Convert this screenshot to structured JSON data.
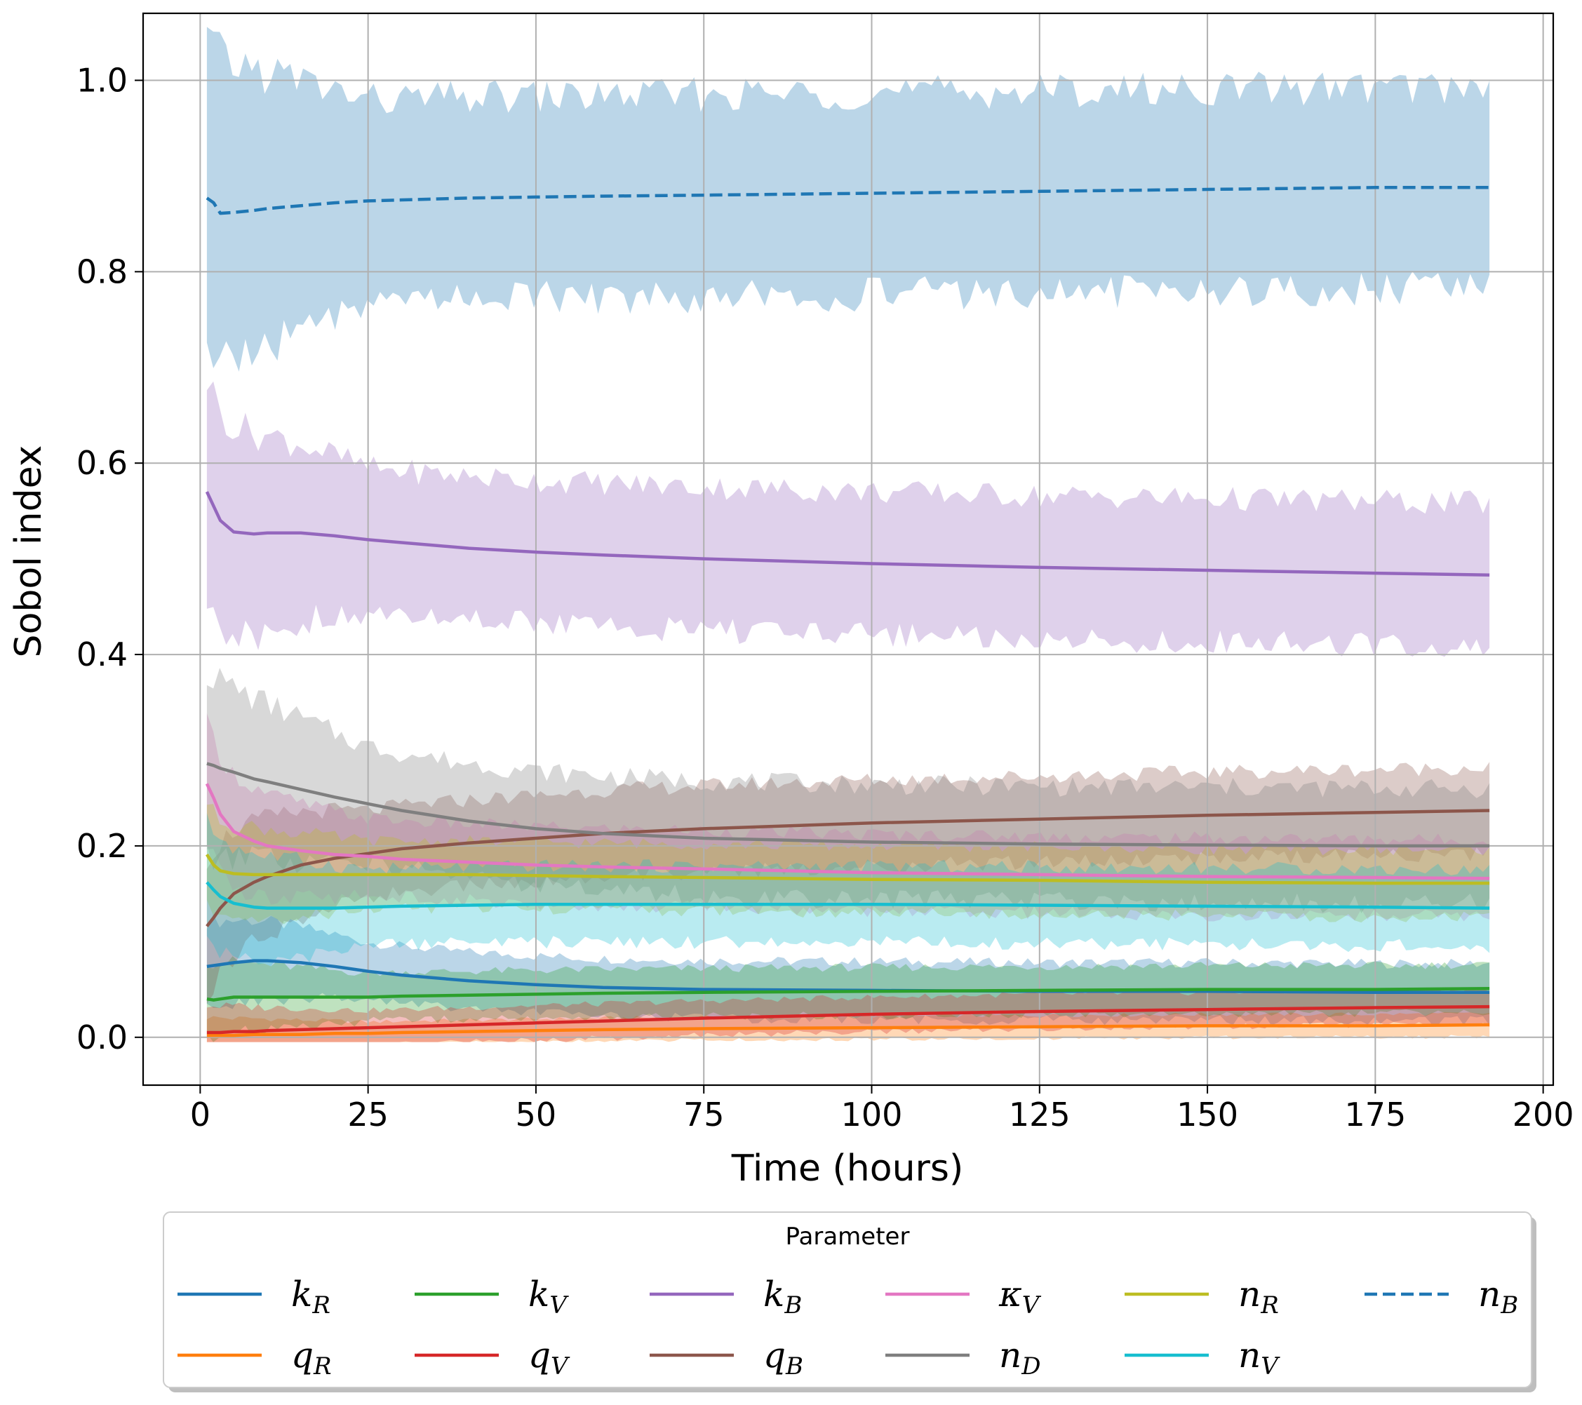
{
  "chart_data": {
    "type": "line",
    "xlabel": "Time (hours)",
    "ylabel": "Sobol index",
    "xlim": [
      -8.5,
      201.5
    ],
    "ylim": [
      -0.05,
      1.07
    ],
    "xticks": [
      0,
      25,
      50,
      75,
      100,
      125,
      150,
      175,
      200
    ],
    "yticks": [
      0.0,
      0.2,
      0.4,
      0.6,
      0.8,
      1.0
    ],
    "ytick_labels": [
      "0.0",
      "0.2",
      "0.4",
      "0.6",
      "0.8",
      "1.0"
    ],
    "grid": true,
    "legend": {
      "title": "Parameter",
      "placement": "below",
      "columns": 6
    },
    "x": [
      1,
      2,
      3,
      5,
      8,
      10,
      15,
      20,
      25,
      30,
      40,
      50,
      60,
      75,
      100,
      125,
      150,
      175,
      192
    ],
    "series": [
      {
        "name": "k",
        "sub": "R",
        "color": "#1f77b4",
        "dash": false,
        "band": 0.03,
        "values": [
          0.074,
          0.075,
          0.076,
          0.078,
          0.08,
          0.08,
          0.078,
          0.074,
          0.069,
          0.065,
          0.059,
          0.055,
          0.052,
          0.05,
          0.049,
          0.048,
          0.048,
          0.047,
          0.047
        ]
      },
      {
        "name": "q",
        "sub": "R",
        "color": "#ff7f0e",
        "dash": false,
        "band": 0.012,
        "values": [
          0.002,
          0.002,
          0.002,
          0.002,
          0.003,
          0.003,
          0.003,
          0.004,
          0.004,
          0.005,
          0.006,
          0.007,
          0.008,
          0.009,
          0.01,
          0.011,
          0.012,
          0.012,
          0.013
        ]
      },
      {
        "name": "k",
        "sub": "V",
        "color": "#2ca02c",
        "dash": false,
        "band": 0.025,
        "values": [
          0.04,
          0.039,
          0.04,
          0.042,
          0.042,
          0.042,
          0.042,
          0.042,
          0.042,
          0.043,
          0.044,
          0.045,
          0.046,
          0.047,
          0.048,
          0.049,
          0.05,
          0.05,
          0.051
        ]
      },
      {
        "name": "q",
        "sub": "V",
        "color": "#d62728",
        "dash": false,
        "band": 0.018,
        "values": [
          0.005,
          0.005,
          0.005,
          0.006,
          0.006,
          0.007,
          0.008,
          0.009,
          0.01,
          0.011,
          0.013,
          0.015,
          0.017,
          0.02,
          0.024,
          0.027,
          0.029,
          0.031,
          0.032
        ]
      },
      {
        "name": "k",
        "sub": "B",
        "color": "#9467bd",
        "dash": false,
        "band": 0.075,
        "values": [
          0.57,
          0.555,
          0.54,
          0.528,
          0.526,
          0.527,
          0.527,
          0.524,
          0.52,
          0.517,
          0.511,
          0.507,
          0.504,
          0.5,
          0.495,
          0.491,
          0.488,
          0.485,
          0.483
        ]
      },
      {
        "name": "q",
        "sub": "B",
        "color": "#8c564b",
        "dash": false,
        "band": 0.045,
        "values": [
          0.116,
          0.125,
          0.135,
          0.15,
          0.162,
          0.168,
          0.18,
          0.187,
          0.192,
          0.197,
          0.203,
          0.208,
          0.213,
          0.218,
          0.224,
          0.228,
          0.232,
          0.235,
          0.237
        ]
      },
      {
        "name": "κ",
        "sub": "V",
        "color": "#e377c2",
        "dash": false,
        "band": 0.04,
        "values": [
          0.265,
          0.25,
          0.233,
          0.215,
          0.205,
          0.2,
          0.195,
          0.191,
          0.189,
          0.186,
          0.183,
          0.18,
          0.178,
          0.176,
          0.172,
          0.17,
          0.168,
          0.167,
          0.166
        ]
      },
      {
        "name": "n",
        "sub": "D",
        "color": "#7f7f7f",
        "dash": false,
        "band": 0.06,
        "values": [
          0.286,
          0.284,
          0.281,
          0.277,
          0.27,
          0.267,
          0.259,
          0.251,
          0.244,
          0.237,
          0.226,
          0.218,
          0.213,
          0.208,
          0.204,
          0.202,
          0.201,
          0.2,
          0.2
        ]
      },
      {
        "name": "n",
        "sub": "R",
        "color": "#bcbd22",
        "dash": false,
        "band": 0.035,
        "values": [
          0.191,
          0.18,
          0.174,
          0.171,
          0.17,
          0.17,
          0.17,
          0.17,
          0.17,
          0.17,
          0.17,
          0.169,
          0.168,
          0.167,
          0.165,
          0.164,
          0.162,
          0.161,
          0.161
        ]
      },
      {
        "name": "n",
        "sub": "V",
        "color": "#17becf",
        "dash": false,
        "band": 0.04,
        "values": [
          0.162,
          0.154,
          0.147,
          0.14,
          0.136,
          0.135,
          0.135,
          0.135,
          0.136,
          0.137,
          0.138,
          0.139,
          0.139,
          0.139,
          0.139,
          0.138,
          0.137,
          0.136,
          0.135
        ]
      },
      {
        "name": "n",
        "sub": "B",
        "color": "#1f77b4",
        "dash": true,
        "band": 0.105,
        "values": [
          0.877,
          0.872,
          0.861,
          0.862,
          0.864,
          0.866,
          0.869,
          0.872,
          0.874,
          0.875,
          0.877,
          0.878,
          0.879,
          0.88,
          0.882,
          0.884,
          0.886,
          0.888,
          0.888
        ]
      }
    ]
  }
}
